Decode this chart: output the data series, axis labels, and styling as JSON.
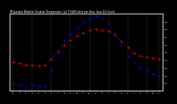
{
  "title": "Milwaukee Weather Outdoor Temperature (vs) THSW Index per Hour (Last 24 Hours)",
  "hours": [
    0,
    1,
    2,
    3,
    4,
    5,
    6,
    7,
    8,
    9,
    10,
    11,
    12,
    13,
    14,
    15,
    16,
    17,
    18,
    19,
    20,
    21,
    22,
    23
  ],
  "temp": [
    38,
    36,
    34,
    34,
    33,
    34,
    42,
    52,
    60,
    67,
    72,
    76,
    79,
    81,
    80,
    78,
    73,
    65,
    57,
    50,
    46,
    44,
    43,
    42
  ],
  "thsw": [
    10,
    8,
    6,
    8,
    7,
    6,
    28,
    50,
    65,
    74,
    82,
    90,
    95,
    98,
    95,
    88,
    76,
    60,
    46,
    36,
    30,
    26,
    22,
    20
  ],
  "temp_color": "#dd0000",
  "thsw_color": "#0000dd",
  "bg_color": "#000000",
  "plot_bg": "#000000",
  "grid_color": "#555555",
  "ylim": [
    0,
    100
  ],
  "yticks_right": [
    10,
    20,
    30,
    40,
    50,
    60,
    70,
    80,
    90
  ],
  "ytick_labels_right": [
    "10",
    "20",
    "30",
    "40",
    "50",
    "60",
    "70",
    "80",
    "90"
  ],
  "vgrid_hours": [
    0,
    3,
    6,
    9,
    12,
    15,
    18,
    21,
    23
  ],
  "xlabel_ticks": [
    0,
    1,
    2,
    3,
    4,
    5,
    6,
    7,
    8,
    9,
    10,
    11,
    12,
    13,
    14,
    15,
    16,
    17,
    18,
    19,
    20,
    21,
    22,
    23
  ],
  "xlabel_labels": [
    "12",
    "1",
    "2",
    "3",
    "4",
    "5",
    "6",
    "7",
    "8",
    "9",
    "10",
    "11",
    "12",
    "1",
    "2",
    "3",
    "4",
    "5",
    "6",
    "7",
    "8",
    "9",
    "10",
    "11"
  ]
}
